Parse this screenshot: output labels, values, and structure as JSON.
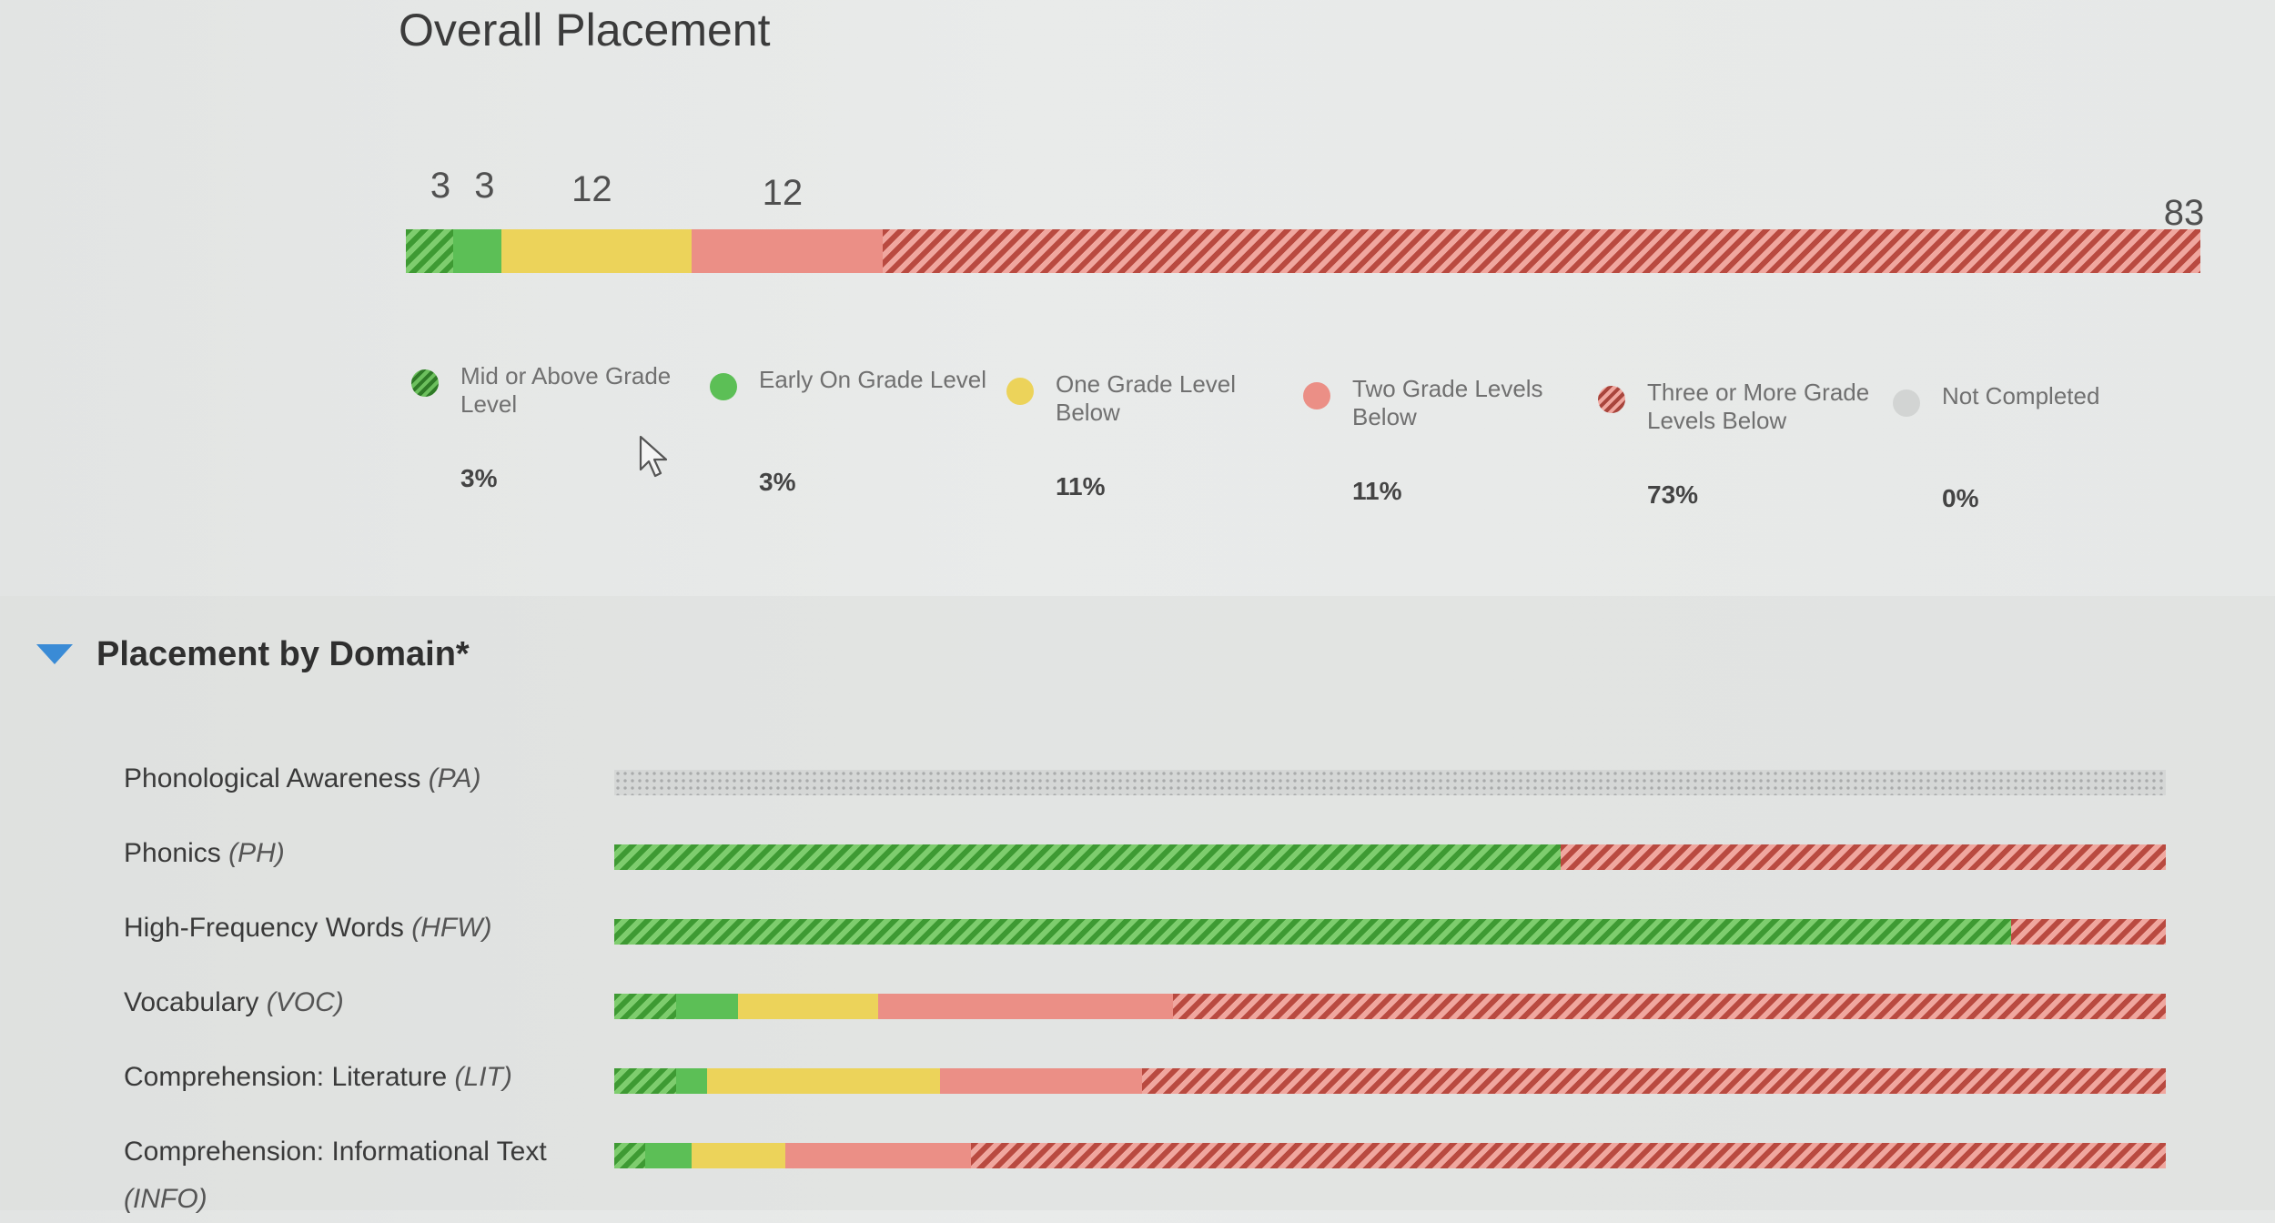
{
  "overall": {
    "title": "Overall Placement",
    "counts": [
      "3",
      "3",
      "12",
      "12",
      "83"
    ]
  },
  "legend": [
    {
      "key": "mid",
      "label": "Mid or Above Grade Level",
      "pct": "3%",
      "icon": "striped-green-dot-icon"
    },
    {
      "key": "early",
      "label": "Early On Grade Level",
      "pct": "3%",
      "icon": "green-dot-icon"
    },
    {
      "key": "one",
      "label": "One Grade Level Below",
      "pct": "11%",
      "icon": "yellow-dot-icon"
    },
    {
      "key": "two",
      "label": "Two Grade Levels Below",
      "pct": "11%",
      "icon": "red-dot-icon"
    },
    {
      "key": "three",
      "label": "Three or More Grade Levels Below",
      "pct": "73%",
      "icon": "striped-red-dot-icon"
    },
    {
      "key": "nc",
      "label": "Not Completed",
      "pct": "0%",
      "icon": "gray-dot-icon"
    }
  ],
  "domain_section": {
    "title": "Placement by Domain*",
    "toggle_icon": "triangle-down-icon",
    "toggle_color": "#3a8bd6",
    "domains": [
      {
        "name": "Phonological Awareness",
        "abbr": "(PA)"
      },
      {
        "name": "Phonics",
        "abbr": "(PH)"
      },
      {
        "name": "High-Frequency Words",
        "abbr": "(HFW)"
      },
      {
        "name": "Vocabulary",
        "abbr": "(VOC)"
      },
      {
        "name": "Comprehension: Literature",
        "abbr": "(LIT)"
      },
      {
        "name": "Comprehension: Informational Text",
        "abbr": "(INFO)"
      }
    ]
  },
  "colors": {
    "mid": "#3e9a33",
    "early": "#5cbf56",
    "one": "#ecd35a",
    "two": "#eb8f86",
    "three": "#c0534a",
    "nc": "#d2d4d3"
  },
  "chart_data": [
    {
      "type": "bar",
      "orientation": "horizontal-stacked",
      "title": "Overall Placement",
      "categories": [
        "Mid or Above Grade Level",
        "Early On Grade Level",
        "One Grade Level Below",
        "Two Grade Levels Below",
        "Three or More Grade Levels Below",
        "Not Completed"
      ],
      "values": [
        3,
        3,
        12,
        12,
        83,
        0
      ],
      "percentages": [
        3,
        3,
        11,
        11,
        73,
        0
      ]
    },
    {
      "type": "bar",
      "orientation": "horizontal-stacked-100",
      "title": "Placement by Domain*",
      "categories": [
        "Phonological Awareness (PA)",
        "Phonics (PH)",
        "High-Frequency Words (HFW)",
        "Vocabulary (VOC)",
        "Comprehension: Literature (LIT)",
        "Comprehension: Informational Text (INFO)"
      ],
      "series": [
        {
          "name": "Mid or Above Grade Level",
          "values": [
            0,
            61,
            90,
            4,
            4,
            2
          ]
        },
        {
          "name": "Early On Grade Level",
          "values": [
            0,
            0,
            0,
            4,
            2,
            3
          ]
        },
        {
          "name": "One Grade Level Below",
          "values": [
            0,
            0,
            0,
            9,
            15,
            6
          ]
        },
        {
          "name": "Two Grade Levels Below",
          "values": [
            0,
            0,
            0,
            19,
            13,
            12
          ]
        },
        {
          "name": "Three or More Grade Levels Below",
          "values": [
            0,
            39,
            10,
            64,
            66,
            77
          ]
        },
        {
          "name": "Not Completed",
          "values": [
            100,
            0,
            0,
            0,
            0,
            0
          ]
        }
      ]
    }
  ]
}
